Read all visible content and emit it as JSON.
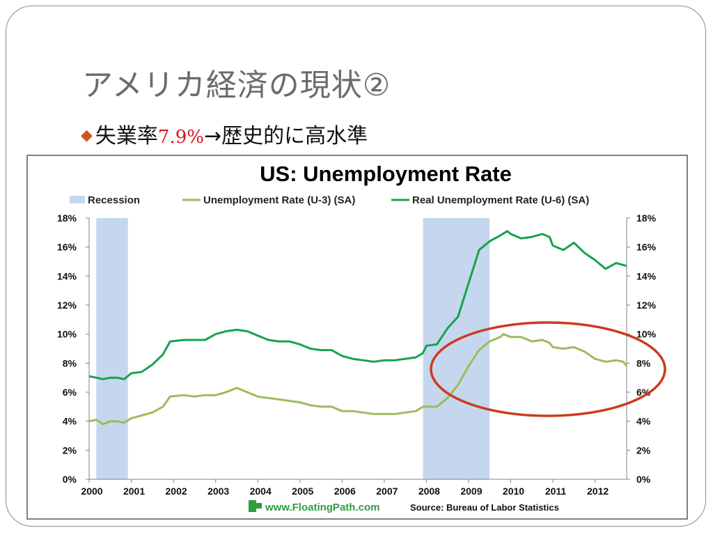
{
  "slide": {
    "title": "アメリカ経済の現状②",
    "bullet": {
      "prefix": "失業率",
      "highlight": "7.9%",
      "arrow": "→",
      "suffix": "歴史的に高水準"
    }
  },
  "colors": {
    "title": "#6b6b6b",
    "bullet_marker": "#d2531f",
    "highlight_text": "#d6161b",
    "recession": "#c5d7ee",
    "u3": "#9cbc59",
    "u6": "#16a34a",
    "ellipse": "#cc3b1c",
    "logo": "#2e9e3e"
  },
  "chart_data": {
    "type": "line",
    "title": "US: Unemployment Rate",
    "legend_position": "top",
    "legend": [
      {
        "name": "Recession",
        "kind": "recession"
      },
      {
        "name": "Unemployment Rate (U-3) (SA)",
        "kind": "u3"
      },
      {
        "name": "Real Unemployment Rate (U-6) (SA)",
        "kind": "u6"
      }
    ],
    "x_ticks": [
      "2000",
      "2001",
      "2002",
      "2003",
      "2004",
      "2005",
      "2006",
      "2007",
      "2008",
      "2009",
      "2010",
      "2011",
      "2012"
    ],
    "xlim": [
      2000,
      2012.75
    ],
    "ylim": [
      0,
      18
    ],
    "y_ticks_left": [
      "0%",
      "2%",
      "4%",
      "6%",
      "8%",
      "10%",
      "12%",
      "14%",
      "16%",
      "18%"
    ],
    "y_ticks_right": [
      "0%",
      "2%",
      "4%",
      "6%",
      "8%",
      "10%",
      "12%",
      "14%",
      "16%",
      "18%"
    ],
    "grid": false,
    "recessions": [
      {
        "start": 2000.17,
        "end": 2000.92
      },
      {
        "start": 2007.92,
        "end": 2009.5
      }
    ],
    "series": [
      {
        "name": "Unemployment Rate (U-3) (SA)",
        "key": "u3",
        "points": [
          [
            2000.0,
            4.0
          ],
          [
            2000.17,
            4.1
          ],
          [
            2000.33,
            3.8
          ],
          [
            2000.5,
            4.0
          ],
          [
            2000.67,
            4.0
          ],
          [
            2000.83,
            3.9
          ],
          [
            2001.0,
            4.2
          ],
          [
            2001.25,
            4.4
          ],
          [
            2001.5,
            4.6
          ],
          [
            2001.75,
            5.0
          ],
          [
            2001.92,
            5.7
          ],
          [
            2002.25,
            5.8
          ],
          [
            2002.5,
            5.7
          ],
          [
            2002.75,
            5.8
          ],
          [
            2003.0,
            5.8
          ],
          [
            2003.25,
            6.0
          ],
          [
            2003.5,
            6.3
          ],
          [
            2003.75,
            6.0
          ],
          [
            2004.0,
            5.7
          ],
          [
            2004.25,
            5.6
          ],
          [
            2004.5,
            5.5
          ],
          [
            2004.75,
            5.4
          ],
          [
            2005.0,
            5.3
          ],
          [
            2005.25,
            5.1
          ],
          [
            2005.5,
            5.0
          ],
          [
            2005.75,
            5.0
          ],
          [
            2006.0,
            4.7
          ],
          [
            2006.25,
            4.7
          ],
          [
            2006.5,
            4.6
          ],
          [
            2006.75,
            4.5
          ],
          [
            2007.0,
            4.5
          ],
          [
            2007.25,
            4.5
          ],
          [
            2007.5,
            4.6
          ],
          [
            2007.75,
            4.7
          ],
          [
            2007.92,
            5.0
          ],
          [
            2008.25,
            5.0
          ],
          [
            2008.5,
            5.6
          ],
          [
            2008.75,
            6.5
          ],
          [
            2009.0,
            7.8
          ],
          [
            2009.25,
            8.9
          ],
          [
            2009.5,
            9.5
          ],
          [
            2009.75,
            9.8
          ],
          [
            2009.83,
            10.0
          ],
          [
            2010.0,
            9.8
          ],
          [
            2010.25,
            9.8
          ],
          [
            2010.5,
            9.5
          ],
          [
            2010.75,
            9.6
          ],
          [
            2010.92,
            9.4
          ],
          [
            2011.0,
            9.1
          ],
          [
            2011.25,
            9.0
          ],
          [
            2011.5,
            9.1
          ],
          [
            2011.75,
            8.8
          ],
          [
            2012.0,
            8.3
          ],
          [
            2012.25,
            8.1
          ],
          [
            2012.5,
            8.2
          ],
          [
            2012.67,
            8.1
          ],
          [
            2012.75,
            7.8
          ]
        ]
      },
      {
        "name": "Real Unemployment Rate (U-6) (SA)",
        "key": "u6",
        "points": [
          [
            2000.0,
            7.1
          ],
          [
            2000.17,
            7.0
          ],
          [
            2000.33,
            6.9
          ],
          [
            2000.5,
            7.0
          ],
          [
            2000.67,
            7.0
          ],
          [
            2000.83,
            6.9
          ],
          [
            2001.0,
            7.3
          ],
          [
            2001.25,
            7.4
          ],
          [
            2001.5,
            7.9
          ],
          [
            2001.75,
            8.6
          ],
          [
            2001.92,
            9.5
          ],
          [
            2002.25,
            9.6
          ],
          [
            2002.5,
            9.6
          ],
          [
            2002.75,
            9.6
          ],
          [
            2003.0,
            10.0
          ],
          [
            2003.25,
            10.2
          ],
          [
            2003.5,
            10.3
          ],
          [
            2003.75,
            10.2
          ],
          [
            2004.0,
            9.9
          ],
          [
            2004.25,
            9.6
          ],
          [
            2004.5,
            9.5
          ],
          [
            2004.75,
            9.5
          ],
          [
            2005.0,
            9.3
          ],
          [
            2005.25,
            9.0
          ],
          [
            2005.5,
            8.9
          ],
          [
            2005.75,
            8.9
          ],
          [
            2006.0,
            8.5
          ],
          [
            2006.25,
            8.3
          ],
          [
            2006.5,
            8.2
          ],
          [
            2006.75,
            8.1
          ],
          [
            2007.0,
            8.2
          ],
          [
            2007.25,
            8.2
          ],
          [
            2007.5,
            8.3
          ],
          [
            2007.75,
            8.4
          ],
          [
            2007.92,
            8.7
          ],
          [
            2008.0,
            9.2
          ],
          [
            2008.25,
            9.3
          ],
          [
            2008.5,
            10.4
          ],
          [
            2008.75,
            11.2
          ],
          [
            2009.0,
            13.5
          ],
          [
            2009.25,
            15.8
          ],
          [
            2009.5,
            16.4
          ],
          [
            2009.75,
            16.8
          ],
          [
            2009.92,
            17.1
          ],
          [
            2010.0,
            16.9
          ],
          [
            2010.25,
            16.6
          ],
          [
            2010.5,
            16.7
          ],
          [
            2010.75,
            16.9
          ],
          [
            2010.92,
            16.7
          ],
          [
            2011.0,
            16.1
          ],
          [
            2011.25,
            15.8
          ],
          [
            2011.5,
            16.3
          ],
          [
            2011.75,
            15.6
          ],
          [
            2012.0,
            15.1
          ],
          [
            2012.25,
            14.5
          ],
          [
            2012.5,
            14.9
          ],
          [
            2012.75,
            14.7
          ]
        ]
      }
    ],
    "footer": {
      "site": "www.FloatingPath.com",
      "source": "Source: Bureau of Labor Statistics"
    }
  }
}
